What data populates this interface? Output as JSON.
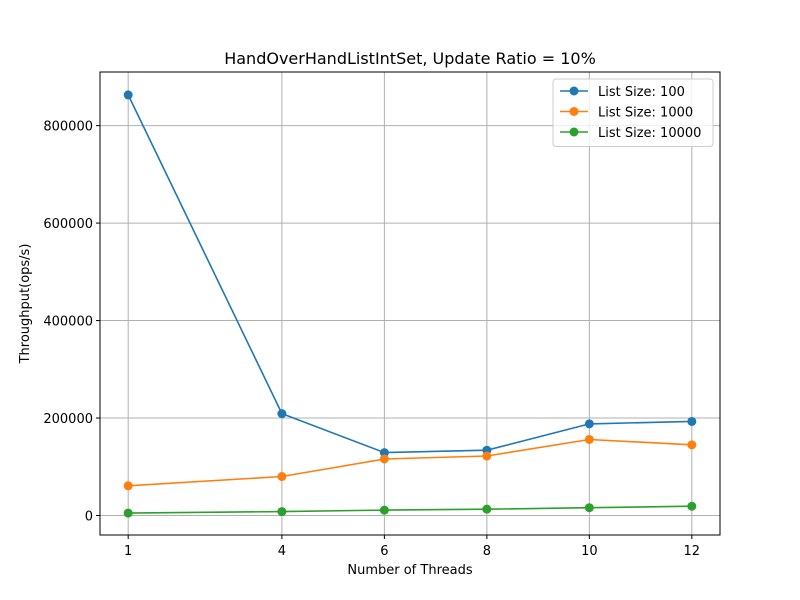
{
  "chart_data": {
    "type": "line",
    "title": "HandOverHandListIntSet, Update Ratio = 10%",
    "xlabel": "Number of Threads",
    "ylabel": "Throughput(ops/s)",
    "x": [
      1,
      4,
      6,
      8,
      10,
      12
    ],
    "xticks": [
      "1",
      "4",
      "6",
      "8",
      "10",
      "12"
    ],
    "xlim": [
      0.45,
      12.55
    ],
    "ylim": [
      -40000,
      910000
    ],
    "yticks": [
      0,
      200000,
      400000,
      600000,
      800000
    ],
    "ytick_labels": [
      "0",
      "200000",
      "400000",
      "600000",
      "800000"
    ],
    "grid": true,
    "legend_position": "top-right",
    "series": [
      {
        "name": "List Size: 100",
        "color": "#1f77b4",
        "marker": "circle",
        "values": [
          863000,
          209000,
          129000,
          134000,
          188000,
          193000
        ]
      },
      {
        "name": "List Size: 1000",
        "color": "#ff7f0e",
        "marker": "circle",
        "values": [
          61000,
          80000,
          116000,
          122000,
          156000,
          145000
        ]
      },
      {
        "name": "List Size: 10000",
        "color": "#2ca02c",
        "marker": "circle",
        "values": [
          5000,
          8000,
          11000,
          13000,
          16000,
          19000
        ]
      }
    ]
  }
}
